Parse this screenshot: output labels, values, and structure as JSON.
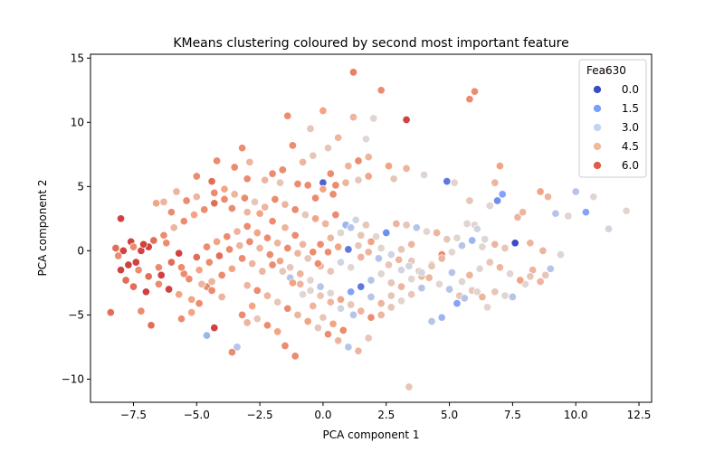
{
  "chart_data": {
    "type": "scatter",
    "title": "KMeans clustering coloured by second most important feature",
    "xlabel": "PCA component 1",
    "ylabel": "PCA component 2",
    "xlim": [
      -9.2,
      13.0
    ],
    "ylim": [
      -11.8,
      15.3
    ],
    "xticks": [
      -7.5,
      -5.0,
      -2.5,
      0.0,
      2.5,
      5.0,
      7.5,
      10.0,
      12.5
    ],
    "xtick_labels": [
      "−7.5",
      "−5.0",
      "−2.5",
      "0.0",
      "2.5",
      "5.0",
      "7.5",
      "10.0",
      "12.5"
    ],
    "yticks": [
      -10,
      -5,
      0,
      5,
      10,
      15
    ],
    "ytick_labels": [
      "−10",
      "−5",
      "0",
      "5",
      "10",
      "15"
    ],
    "grid": false,
    "legend": {
      "title": "Fea630",
      "placement": "top-right",
      "entries": [
        {
          "label": "0.0",
          "color": "#3b4cc0"
        },
        {
          "label": "1.5",
          "color": "#7b9ff9"
        },
        {
          "label": "3.0",
          "color": "#c0d4f5"
        },
        {
          "label": "4.5",
          "color": "#f2b89b"
        },
        {
          "label": "6.0",
          "color": "#dc5d4a"
        }
      ]
    },
    "colormap": "coolwarm",
    "color_range": [
      0,
      7.5
    ],
    "points": [
      [
        11.2,
        14.0,
        6
      ],
      [
        1.2,
        13.9,
        6.2
      ],
      [
        2.3,
        12.5,
        6
      ],
      [
        6.0,
        12.4,
        6
      ],
      [
        5.8,
        11.8,
        6
      ],
      [
        3.3,
        10.2,
        7
      ],
      [
        -1.4,
        10.5,
        6
      ],
      [
        0.0,
        10.9,
        5.5
      ],
      [
        1.2,
        10.4,
        5
      ],
      [
        2.0,
        10.3,
        4
      ],
      [
        -0.5,
        9.5,
        4.5
      ],
      [
        -1.2,
        8.2,
        6
      ],
      [
        0.2,
        8.0,
        4.5
      ],
      [
        0.6,
        8.8,
        5
      ],
      [
        1.7,
        8.7,
        4
      ],
      [
        -3.2,
        8.0,
        6
      ],
      [
        -2.9,
        6.9,
        5
      ],
      [
        -3.5,
        6.5,
        6
      ],
      [
        -4.4,
        5.4,
        6.5
      ],
      [
        -3.0,
        5.6,
        6
      ],
      [
        -2.3,
        5.5,
        5
      ],
      [
        -1.7,
        5.3,
        4.5
      ],
      [
        -1.0,
        5.2,
        6
      ],
      [
        -0.6,
        5.1,
        6
      ],
      [
        0.0,
        5.3,
        0.5
      ],
      [
        0.5,
        5.1,
        6
      ],
      [
        0.9,
        5.3,
        5
      ],
      [
        1.4,
        5.5,
        4.5
      ],
      [
        1.8,
        5.8,
        5.5
      ],
      [
        2.8,
        5.6,
        4.5
      ],
      [
        4.9,
        5.4,
        1
      ],
      [
        5.2,
        5.3,
        4
      ],
      [
        6.8,
        5.3,
        5
      ],
      [
        7.0,
        6.6,
        5.5
      ],
      [
        7.1,
        4.4,
        2
      ],
      [
        6.9,
        3.9,
        1.5
      ],
      [
        8.6,
        4.6,
        5.5
      ],
      [
        8.9,
        4.2,
        5
      ],
      [
        10.0,
        4.6,
        3
      ],
      [
        10.7,
        4.2,
        4
      ],
      [
        9.2,
        2.9,
        3
      ],
      [
        9.7,
        2.7,
        4
      ],
      [
        10.4,
        3.0,
        2
      ],
      [
        11.3,
        1.7,
        3.5
      ],
      [
        12.0,
        3.1,
        4
      ],
      [
        7.7,
        2.6,
        5
      ],
      [
        7.9,
        3.0,
        5
      ],
      [
        6.6,
        3.5,
        4
      ],
      [
        6.0,
        2.0,
        4
      ],
      [
        5.8,
        3.9,
        4.5
      ],
      [
        -8.0,
        2.5,
        7
      ],
      [
        -8.2,
        0.2,
        6.5
      ],
      [
        -8.0,
        -1.5,
        7
      ],
      [
        -7.6,
        0.7,
        7
      ],
      [
        -7.4,
        -0.9,
        7
      ],
      [
        -7.2,
        0.0,
        7
      ],
      [
        -6.9,
        0.3,
        7
      ],
      [
        -7.5,
        -2.8,
        6.5
      ],
      [
        -7.0,
        -3.2,
        7
      ],
      [
        -6.5,
        -1.3,
        6
      ],
      [
        -6.3,
        3.8,
        5
      ],
      [
        -6.0,
        3.0,
        6
      ],
      [
        -6.2,
        0.6,
        6
      ],
      [
        -5.7,
        -0.2,
        7
      ],
      [
        -5.5,
        -1.8,
        6
      ],
      [
        -5.2,
        -3.8,
        5.5
      ],
      [
        -4.9,
        -4.1,
        6
      ],
      [
        -4.6,
        -2.8,
        6
      ],
      [
        -4.3,
        -6.0,
        7
      ],
      [
        -4.6,
        -6.6,
        2.5
      ],
      [
        -5.4,
        3.9,
        6
      ],
      [
        -5.0,
        4.2,
        5
      ],
      [
        -4.3,
        4.5,
        6
      ],
      [
        -3.9,
        4.8,
        5.5
      ],
      [
        -3.6,
        3.3,
        6
      ],
      [
        -3.0,
        3.0,
        5
      ],
      [
        -2.5,
        2.9,
        5.5
      ],
      [
        -2.0,
        2.3,
        6
      ],
      [
        -1.5,
        1.8,
        5
      ],
      [
        -1.1,
        1.2,
        6
      ],
      [
        -0.8,
        0.5,
        5
      ],
      [
        -0.4,
        -0.1,
        6
      ],
      [
        -0.1,
        -1.2,
        5
      ],
      [
        0.3,
        -1.6,
        4.5
      ],
      [
        0.7,
        -0.9,
        3.5
      ],
      [
        1.1,
        -1.3,
        4
      ],
      [
        1.5,
        -0.5,
        5
      ],
      [
        1.9,
        -2.3,
        3
      ],
      [
        2.3,
        -1.8,
        4
      ],
      [
        2.7,
        -2.5,
        4.5
      ],
      [
        3.1,
        -1.5,
        3.5
      ],
      [
        3.5,
        -0.8,
        4.5
      ],
      [
        3.9,
        -2.0,
        5
      ],
      [
        4.3,
        -1.1,
        5
      ],
      [
        4.7,
        -0.3,
        6
      ],
      [
        5.1,
        -1.7,
        3
      ],
      [
        5.5,
        -2.4,
        4
      ],
      [
        5.9,
        -3.1,
        4.5
      ],
      [
        6.3,
        -3.6,
        5
      ],
      [
        6.8,
        -3.2,
        4.5
      ],
      [
        7.2,
        -3.5,
        4
      ],
      [
        7.5,
        -3.6,
        3
      ],
      [
        8.0,
        -2.6,
        4
      ],
      [
        8.3,
        -1.5,
        5
      ],
      [
        8.8,
        -1.9,
        4.5
      ],
      [
        9.0,
        -1.4,
        3
      ],
      [
        9.4,
        -0.3,
        4
      ],
      [
        8.7,
        0.0,
        5
      ],
      [
        8.2,
        0.6,
        5
      ],
      [
        7.6,
        0.6,
        0
      ],
      [
        7.2,
        0.2,
        4.5
      ],
      [
        6.8,
        0.5,
        5
      ],
      [
        6.4,
        0.9,
        4
      ],
      [
        6.1,
        1.7,
        3.5
      ],
      [
        5.7,
        2.1,
        4
      ],
      [
        5.3,
        1.0,
        4
      ],
      [
        4.9,
        0.9,
        4.5
      ],
      [
        4.5,
        1.4,
        5
      ],
      [
        4.1,
        1.5,
        4
      ],
      [
        3.7,
        1.8,
        3
      ],
      [
        3.3,
        2.0,
        4.5
      ],
      [
        2.9,
        2.1,
        5
      ],
      [
        2.5,
        1.4,
        1.5
      ],
      [
        2.1,
        1.1,
        4
      ],
      [
        1.7,
        2.0,
        4.5
      ],
      [
        1.3,
        2.4,
        3.5
      ],
      [
        0.9,
        2.0,
        2.5
      ],
      [
        0.5,
        2.8,
        6
      ],
      [
        0.1,
        2.1,
        5
      ],
      [
        -0.3,
        2.5,
        5.5
      ],
      [
        -0.7,
        2.8,
        4.5
      ],
      [
        -1.1,
        3.2,
        6
      ],
      [
        -1.5,
        3.6,
        5
      ],
      [
        -1.9,
        4.0,
        6
      ],
      [
        -2.3,
        3.4,
        5
      ],
      [
        -2.7,
        3.8,
        4.5
      ],
      [
        -3.1,
        4.1,
        6
      ],
      [
        -3.5,
        4.4,
        5
      ],
      [
        -3.9,
        4.0,
        6
      ],
      [
        -4.3,
        3.7,
        6.5
      ],
      [
        -4.7,
        3.2,
        6
      ],
      [
        -5.1,
        2.8,
        5.5
      ],
      [
        -5.5,
        2.3,
        6
      ],
      [
        -5.9,
        1.8,
        5
      ],
      [
        -6.3,
        1.2,
        6
      ],
      [
        -6.7,
        0.8,
        6.5
      ],
      [
        -7.1,
        0.5,
        7
      ],
      [
        -7.5,
        0.3,
        6
      ],
      [
        -7.9,
        0.0,
        7
      ],
      [
        -8.1,
        -0.4,
        6
      ],
      [
        -7.7,
        -1.1,
        7
      ],
      [
        -7.3,
        -1.5,
        6
      ],
      [
        -6.9,
        -2.0,
        6.5
      ],
      [
        -6.5,
        -2.6,
        6
      ],
      [
        -6.1,
        -3.0,
        7
      ],
      [
        -5.7,
        -3.4,
        5.5
      ],
      [
        -5.3,
        -2.2,
        6
      ],
      [
        -4.9,
        -1.5,
        5.5
      ],
      [
        -4.5,
        -0.9,
        6
      ],
      [
        -4.1,
        -0.4,
        6.5
      ],
      [
        -3.7,
        0.1,
        6
      ],
      [
        -3.3,
        0.4,
        5
      ],
      [
        -2.9,
        0.7,
        6
      ],
      [
        -2.5,
        0.2,
        5
      ],
      [
        -2.1,
        -0.3,
        6
      ],
      [
        -1.7,
        -0.8,
        5.5
      ],
      [
        -1.3,
        -1.3,
        4.5
      ],
      [
        -0.9,
        -1.8,
        5
      ],
      [
        -0.5,
        -2.3,
        4
      ],
      [
        -0.1,
        -2.8,
        3
      ],
      [
        0.3,
        -3.3,
        4
      ],
      [
        0.7,
        -3.8,
        5.5
      ],
      [
        1.1,
        -4.2,
        4.5
      ],
      [
        1.5,
        -4.7,
        5
      ],
      [
        1.9,
        -5.2,
        6
      ],
      [
        2.3,
        -5.0,
        5
      ],
      [
        2.7,
        -4.4,
        4.5
      ],
      [
        3.1,
        -3.9,
        4
      ],
      [
        3.5,
        -3.4,
        4.5
      ],
      [
        3.9,
        -2.9,
        3
      ],
      [
        -3.0,
        -2.7,
        5
      ],
      [
        -2.6,
        -3.1,
        6
      ],
      [
        -2.2,
        -3.5,
        5
      ],
      [
        -1.8,
        -4.0,
        4.5
      ],
      [
        -1.4,
        -4.5,
        6
      ],
      [
        -1.0,
        -5.0,
        5
      ],
      [
        -0.6,
        -5.5,
        5.5
      ],
      [
        -0.2,
        -6.0,
        4.5
      ],
      [
        0.2,
        -6.5,
        6
      ],
      [
        0.6,
        -7.0,
        5
      ],
      [
        1.0,
        -7.5,
        3
      ],
      [
        1.4,
        -7.8,
        5
      ],
      [
        1.8,
        -6.8,
        4.5
      ],
      [
        -1.5,
        -7.4,
        6
      ],
      [
        -1.1,
        -8.2,
        6
      ],
      [
        -1.8,
        -6.3,
        5.5
      ],
      [
        -2.2,
        -5.8,
        6
      ],
      [
        -2.6,
        -5.3,
        4.5
      ],
      [
        -3.0,
        -5.6,
        5
      ],
      [
        -3.4,
        -7.5,
        3
      ],
      [
        -3.6,
        -7.9,
        6
      ],
      [
        -3.2,
        -5.0,
        6
      ],
      [
        -2.8,
        -4.3,
        5.5
      ],
      [
        -4.0,
        -3.6,
        5
      ],
      [
        -4.4,
        -3.1,
        6
      ],
      [
        -4.8,
        -2.6,
        5
      ],
      [
        -5.2,
        -4.8,
        5.5
      ],
      [
        -5.6,
        -5.3,
        6
      ],
      [
        -6.8,
        -5.8,
        6.5
      ],
      [
        -7.2,
        -4.7,
        6
      ],
      [
        -8.4,
        -4.8,
        6.5
      ],
      [
        -7.8,
        -2.3,
        6.5
      ],
      [
        -6.4,
        -1.9,
        7
      ],
      [
        -6.0,
        -0.9,
        6.5
      ],
      [
        -5.6,
        -1.3,
        6
      ],
      [
        -5.0,
        -0.5,
        6.5
      ],
      [
        -4.6,
        0.3,
        6
      ],
      [
        -4.2,
        0.7,
        5.5
      ],
      [
        -3.8,
        1.1,
        6
      ],
      [
        -3.4,
        1.5,
        5
      ],
      [
        -3.0,
        1.9,
        6
      ],
      [
        -2.6,
        1.4,
        5.5
      ],
      [
        -2.2,
        1.0,
        6
      ],
      [
        -1.8,
        0.6,
        5
      ],
      [
        -1.4,
        0.2,
        6
      ],
      [
        -1.0,
        -0.2,
        5
      ],
      [
        -0.6,
        -0.6,
        4.5
      ],
      [
        -0.2,
        -1.0,
        6
      ],
      [
        0.2,
        -0.1,
        6
      ],
      [
        0.6,
        0.3,
        5.5
      ],
      [
        1.0,
        0.1,
        1
      ],
      [
        1.4,
        0.4,
        4.5
      ],
      [
        1.8,
        -0.1,
        5
      ],
      [
        2.2,
        -0.6,
        3
      ],
      [
        2.6,
        -1.1,
        4.5
      ],
      [
        3.0,
        -0.7,
        5
      ],
      [
        3.4,
        -1.2,
        3.5
      ],
      [
        3.8,
        -1.6,
        4.5
      ],
      [
        4.2,
        -2.1,
        5
      ],
      [
        4.6,
        -2.6,
        4
      ],
      [
        5.0,
        -3.0,
        3
      ],
      [
        5.4,
        -3.5,
        4.5
      ],
      [
        5.8,
        -1.9,
        5
      ],
      [
        6.2,
        -1.4,
        4
      ],
      [
        6.6,
        -0.9,
        4.5
      ],
      [
        7.0,
        -1.3,
        5
      ],
      [
        7.4,
        -1.8,
        4
      ],
      [
        7.8,
        -2.3,
        5.5
      ],
      [
        8.2,
        -2.0,
        4.5
      ],
      [
        8.6,
        -2.4,
        5
      ],
      [
        -1.3,
        -2.1,
        3
      ],
      [
        -0.9,
        -2.6,
        5
      ],
      [
        -0.5,
        -3.1,
        4
      ],
      [
        -0.1,
        -3.5,
        4.5
      ],
      [
        0.3,
        -4.0,
        5
      ],
      [
        0.7,
        -4.5,
        3.5
      ],
      [
        1.1,
        -3.2,
        2
      ],
      [
        1.5,
        -2.8,
        1
      ],
      [
        1.9,
        -3.6,
        3
      ],
      [
        2.3,
        -4.1,
        5
      ],
      [
        2.7,
        -3.5,
        4.5
      ],
      [
        3.1,
        -2.8,
        5
      ],
      [
        3.5,
        -2.2,
        4
      ],
      [
        3.9,
        -1.7,
        3.5
      ],
      [
        4.3,
        -1.2,
        4.5
      ],
      [
        4.7,
        -0.6,
        5
      ],
      [
        5.1,
        -0.1,
        4
      ],
      [
        5.5,
        0.4,
        3
      ],
      [
        5.9,
        0.8,
        2.5
      ],
      [
        6.3,
        0.3,
        4
      ],
      [
        -0.1,
        0.5,
        6
      ],
      [
        0.3,
        1.0,
        5
      ],
      [
        0.7,
        1.4,
        4
      ],
      [
        1.1,
        1.8,
        3
      ],
      [
        1.5,
        1.2,
        4.5
      ],
      [
        1.9,
        0.7,
        5.5
      ],
      [
        2.3,
        0.2,
        4
      ],
      [
        2.7,
        -0.3,
        3.5
      ],
      [
        3.1,
        0.1,
        4.5
      ],
      [
        3.5,
        0.5,
        5
      ],
      [
        -2.4,
        -1.6,
        5
      ],
      [
        -2.0,
        -1.1,
        6
      ],
      [
        -1.6,
        -1.6,
        4.5
      ],
      [
        -1.2,
        -2.5,
        5.5
      ],
      [
        -0.8,
        -3.4,
        4
      ],
      [
        -0.4,
        -4.3,
        5
      ],
      [
        0.0,
        -5.2,
        4.5
      ],
      [
        0.4,
        -5.7,
        5.5
      ],
      [
        0.8,
        -6.2,
        6
      ],
      [
        1.2,
        -5.0,
        3
      ],
      [
        3.4,
        -10.6,
        4.5
      ],
      [
        4.3,
        -5.5,
        3
      ],
      [
        4.7,
        -5.2,
        2.5
      ],
      [
        5.3,
        -4.1,
        2
      ],
      [
        5.6,
        -3.7,
        3
      ],
      [
        6.1,
        -3.2,
        4
      ],
      [
        6.5,
        -4.4,
        4
      ],
      [
        -2.8,
        -1.0,
        5
      ],
      [
        -3.2,
        -0.6,
        6
      ],
      [
        -3.6,
        -1.4,
        5.5
      ],
      [
        -4.0,
        -1.9,
        6
      ],
      [
        -4.4,
        -2.4,
        5
      ],
      [
        -0.3,
        4.1,
        6
      ],
      [
        0.0,
        4.8,
        5.5
      ],
      [
        0.4,
        4.4,
        6
      ],
      [
        -2.0,
        6.0,
        6
      ],
      [
        -1.6,
        6.3,
        6
      ],
      [
        -0.8,
        6.9,
        5
      ],
      [
        -0.4,
        7.4,
        4.5
      ],
      [
        0.3,
        6.0,
        6
      ],
      [
        1.0,
        6.6,
        5
      ],
      [
        1.4,
        7.0,
        6
      ],
      [
        1.8,
        7.3,
        5
      ],
      [
        3.3,
        6.4,
        5
      ],
      [
        4.0,
        5.9,
        4
      ],
      [
        2.6,
        6.6,
        5.5
      ],
      [
        -4.2,
        7.0,
        6
      ],
      [
        -5.0,
        5.8,
        6
      ],
      [
        -5.8,
        4.6,
        5
      ],
      [
        -6.6,
        3.7,
        5.5
      ]
    ]
  }
}
